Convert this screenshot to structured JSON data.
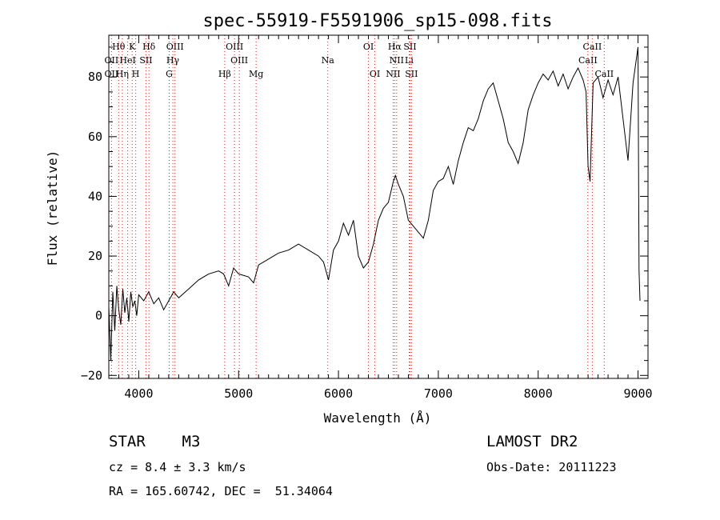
{
  "chart_data": {
    "type": "line",
    "title": "spec-55919-F5591906_sp15-098.fits",
    "xlabel": "Wavelength (Å)",
    "ylabel": "Flux (relative)",
    "xlim": [
      3700,
      9100
    ],
    "ylim": [
      -21,
      94
    ],
    "xticks": [
      4000,
      5000,
      6000,
      7000,
      8000,
      9000
    ],
    "yticks": [
      -20,
      0,
      20,
      40,
      60,
      80
    ],
    "series": [
      {
        "x": [
          3700,
          3720,
          3740,
          3760,
          3780,
          3800,
          3820,
          3840,
          3860,
          3880,
          3900,
          3920,
          3940,
          3960,
          3980,
          4000,
          4050,
          4100,
          4150,
          4200,
          4250,
          4300,
          4350,
          4400,
          4500,
          4600,
          4700,
          4800,
          4850,
          4900,
          4950,
          5000,
          5100,
          5150,
          5200,
          5300,
          5400,
          5500,
          5600,
          5700,
          5800,
          5850,
          5900,
          5950,
          6000,
          6050,
          6100,
          6150,
          6200,
          6250,
          6300,
          6350,
          6400,
          6450,
          6500,
          6550,
          6570,
          6600,
          6650,
          6700,
          6750,
          6800,
          6850,
          6900,
          6950,
          7000,
          7050,
          7100,
          7150,
          7200,
          7250,
          7300,
          7350,
          7400,
          7450,
          7500,
          7550,
          7600,
          7650,
          7700,
          7750,
          7800,
          7850,
          7900,
          7950,
          8000,
          8050,
          8100,
          8150,
          8200,
          8250,
          8300,
          8350,
          8400,
          8450,
          8480,
          8500,
          8520,
          8550,
          8600,
          8650,
          8700,
          8750,
          8800,
          8850,
          8900,
          8950,
          9000,
          9010,
          9020
        ],
        "y": [
          3,
          -15,
          8,
          -5,
          10,
          2,
          -3,
          9,
          1,
          6,
          -2,
          8,
          3,
          5,
          0,
          7,
          5,
          8,
          4,
          6,
          2,
          5,
          8,
          6,
          9,
          12,
          14,
          15,
          14,
          10,
          16,
          14,
          13,
          11,
          17,
          19,
          21,
          22,
          24,
          22,
          20,
          18,
          12,
          22,
          25,
          31,
          27,
          32,
          20,
          16,
          18,
          24,
          32,
          36,
          38,
          45,
          47,
          44,
          40,
          32,
          30,
          28,
          26,
          32,
          42,
          45,
          46,
          50,
          44,
          52,
          58,
          63,
          62,
          66,
          72,
          76,
          78,
          72,
          66,
          58,
          55,
          51,
          58,
          69,
          74,
          78,
          81,
          79,
          82,
          77,
          81,
          76,
          80,
          83,
          79,
          75,
          50,
          45,
          78,
          80,
          73,
          79,
          74,
          80,
          66,
          52,
          78,
          90,
          15,
          5
        ]
      }
    ],
    "line_marks": [
      {
        "label": "Hθ",
        "x": 3798,
        "row": 1,
        "dx": 0
      },
      {
        "label": "K",
        "x": 3934,
        "row": 1,
        "dx": 0
      },
      {
        "label": "Hδ",
        "x": 4102,
        "row": 1,
        "dx": 0
      },
      {
        "label": "OIII",
        "x": 4363,
        "row": 1,
        "dx": 0
      },
      {
        "label": "OIII",
        "x": 4959,
        "row": 1,
        "dx": 0
      },
      {
        "label": "OI",
        "x": 6300,
        "row": 1,
        "dx": 0
      },
      {
        "label": "Hα",
        "x": 6563,
        "row": 1,
        "dx": 0
      },
      {
        "label": "SII",
        "x": 6716,
        "row": 1,
        "dx": 0
      },
      {
        "label": "CaII",
        "x": 8542,
        "row": 1,
        "dx": 0
      },
      {
        "label": "OII",
        "x": 3727,
        "row": 2,
        "dx": 0
      },
      {
        "label": "HeI",
        "x": 3889,
        "row": 2,
        "dx": 0
      },
      {
        "label": "SII",
        "x": 4072,
        "row": 2,
        "dx": 0
      },
      {
        "label": "Hγ",
        "x": 4341,
        "row": 2,
        "dx": 0
      },
      {
        "label": "OIII",
        "x": 5007,
        "row": 2,
        "dx": 0
      },
      {
        "label": "Na",
        "x": 5893,
        "row": 2,
        "dx": 0
      },
      {
        "label": "NII",
        "x": 6583,
        "row": 2,
        "dx": 0
      },
      {
        "label": "Li",
        "x": 6708,
        "row": 2,
        "dx": 0
      },
      {
        "label": "CaII",
        "x": 8498,
        "row": 2,
        "dx": 0
      },
      {
        "label": "OII",
        "x": 3727,
        "row": 3,
        "dx": 0
      },
      {
        "label": "Hη",
        "x": 3835,
        "row": 3,
        "dx": 0
      },
      {
        "label": "H",
        "x": 3969,
        "row": 3,
        "dx": 0
      },
      {
        "label": "G",
        "x": 4305,
        "row": 3,
        "dx": 0
      },
      {
        "label": "Hβ",
        "x": 4861,
        "row": 3,
        "dx": 0
      },
      {
        "label": "Mg",
        "x": 5175,
        "row": 3,
        "dx": 0
      },
      {
        "label": "OI",
        "x": 6364,
        "row": 3,
        "dx": 0
      },
      {
        "label": "NII",
        "x": 6548,
        "row": 3,
        "dx": 0
      },
      {
        "label": "SII",
        "x": 6731,
        "row": 3,
        "dx": 0
      },
      {
        "label": "CaII",
        "x": 8662,
        "row": 3,
        "dx": 0
      }
    ],
    "grid": false,
    "line_color": "#000000",
    "marker_color": "#cc2222"
  },
  "info": {
    "class": "STAR    M3",
    "survey": "LAMOST DR2",
    "cz": "cz = 8.4 ± 3.3 km/s",
    "obs_date": "Obs-Date: 20111223",
    "radec": "RA = 165.60742, DEC =  51.34064"
  }
}
